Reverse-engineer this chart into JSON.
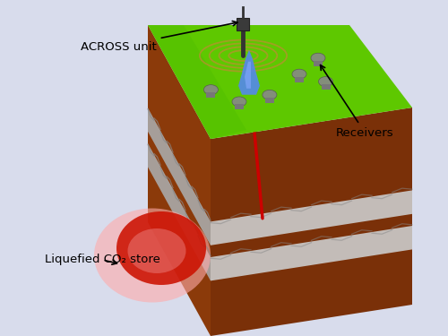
{
  "background_color": "#d8dcec",
  "labels": {
    "across_unit": "ACROSS unit",
    "receivers": "Receivers",
    "co2_store": "Liquefied CO₂ store"
  },
  "colors": {
    "grass_top": "#5ec800",
    "grass_left": "#4ab800",
    "grass_right": "#3da000",
    "soil_left": "#8B3A0A",
    "soil_front": "#7a3008",
    "soil_right": "#6b2a06",
    "rock_gray": "#aaaaaa",
    "rock_light": "#cccccc",
    "rock_dark": "#888888",
    "co2_red": "#cc1100",
    "co2_pink": "#ee8888",
    "co2_halo": "#ffaaaa",
    "pipe_red": "#cc0000",
    "co2_plume": "#5588ee",
    "co2_plume_light": "#88aaff",
    "ripple": "#b89030",
    "device_dark": "#333333",
    "device_brown": "#554433",
    "receiver_gray": "#888888",
    "background": "#d8dcec"
  },
  "text_fontsize": 9.5
}
